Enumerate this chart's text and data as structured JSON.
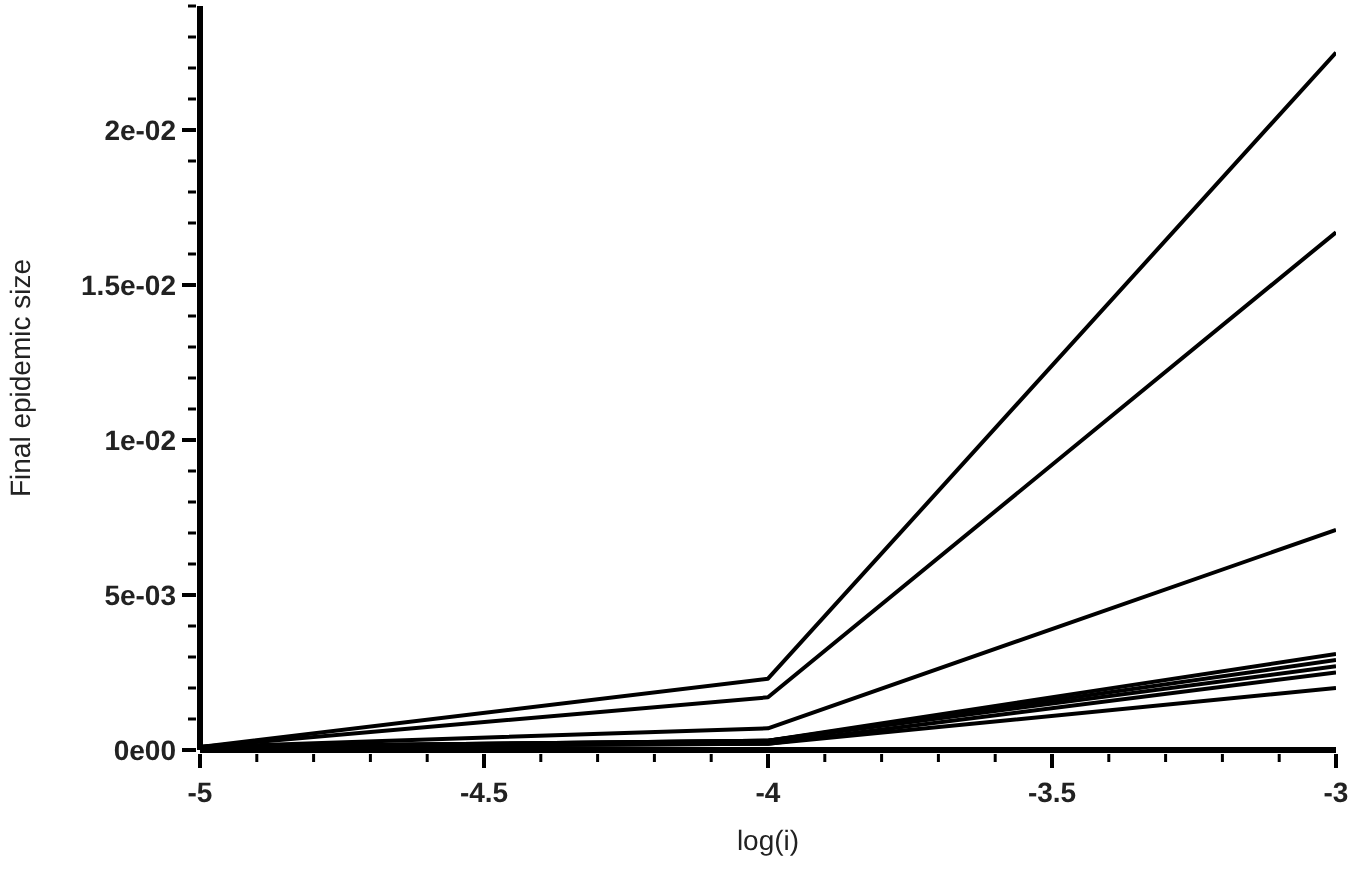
{
  "chart_data": {
    "type": "line",
    "xlabel": "log(i)",
    "ylabel": "Final epidemic size",
    "x": [
      -5,
      -4,
      -3
    ],
    "series": [
      {
        "color": "#000000",
        "values": [
          0.0001,
          0.0023,
          0.0225
        ]
      },
      {
        "color": "#000000",
        "values": [
          0.0001,
          0.0017,
          0.0167
        ]
      },
      {
        "color": "#000000",
        "values": [
          0.0001,
          0.0007,
          0.0071
        ]
      },
      {
        "color": "#000000",
        "values": [
          0.0001,
          0.0003,
          0.0031
        ]
      },
      {
        "color": "#000000",
        "values": [
          0.0001,
          0.0003,
          0.0029
        ]
      },
      {
        "color": "#000000",
        "values": [
          0.0001,
          0.0003,
          0.0027
        ]
      },
      {
        "color": "#000000",
        "values": [
          0.0001,
          0.0002,
          0.0025
        ]
      },
      {
        "color": "#000000",
        "values": [
          0.0001,
          0.0002,
          0.002
        ]
      }
    ],
    "xlim": [
      -5,
      -3
    ],
    "xticks": [
      -5,
      {
        "value": -4.9,
        "label": null
      },
      {
        "value": -4.8,
        "label": null
      },
      {
        "value": -4.7,
        "label": null
      },
      {
        "value": -4.6,
        "label": null
      },
      -4.5,
      {
        "value": -4.4,
        "label": null
      },
      {
        "value": -4.3,
        "label": null
      },
      {
        "value": -4.2,
        "label": null
      },
      {
        "value": -4.1,
        "label": null
      },
      -4,
      {
        "value": -3.9,
        "label": null
      },
      {
        "value": -3.8,
        "label": null
      },
      {
        "value": -3.7,
        "label": null
      },
      {
        "value": -3.6,
        "label": null
      },
      -3.5,
      {
        "value": -3.4,
        "label": null
      },
      {
        "value": -3.3,
        "label": null
      },
      {
        "value": -3.2,
        "label": null
      },
      {
        "value": -3.1,
        "label": null
      },
      -3
    ],
    "ylim": [
      0,
      0.024
    ],
    "yticks": [
      {
        "value": 0,
        "label": "0e00"
      },
      {
        "value": 0.001,
        "label": null
      },
      {
        "value": 0.002,
        "label": null
      },
      {
        "value": 0.003,
        "label": null
      },
      {
        "value": 0.004,
        "label": null
      },
      {
        "value": 0.005,
        "label": "5e-03"
      },
      {
        "value": 0.006,
        "label": null
      },
      {
        "value": 0.007,
        "label": null
      },
      {
        "value": 0.008,
        "label": null
      },
      {
        "value": 0.009,
        "label": null
      },
      {
        "value": 0.01,
        "label": "1e-02"
      },
      {
        "value": 0.011,
        "label": null
      },
      {
        "value": 0.012,
        "label": null
      },
      {
        "value": 0.013,
        "label": null
      },
      {
        "value": 0.014,
        "label": null
      },
      {
        "value": 0.015,
        "label": "1.5e-02"
      },
      {
        "value": 0.016,
        "label": null
      },
      {
        "value": 0.017,
        "label": null
      },
      {
        "value": 0.018,
        "label": null
      },
      {
        "value": 0.019,
        "label": null
      },
      {
        "value": 0.02,
        "label": "2e-02"
      },
      {
        "value": 0.021,
        "label": null
      },
      {
        "value": 0.022,
        "label": null
      },
      {
        "value": 0.023,
        "label": null
      },
      {
        "value": 0.024,
        "label": null
      }
    ],
    "grid": false,
    "legend": false,
    "marker": "none",
    "line_style": "solid"
  }
}
